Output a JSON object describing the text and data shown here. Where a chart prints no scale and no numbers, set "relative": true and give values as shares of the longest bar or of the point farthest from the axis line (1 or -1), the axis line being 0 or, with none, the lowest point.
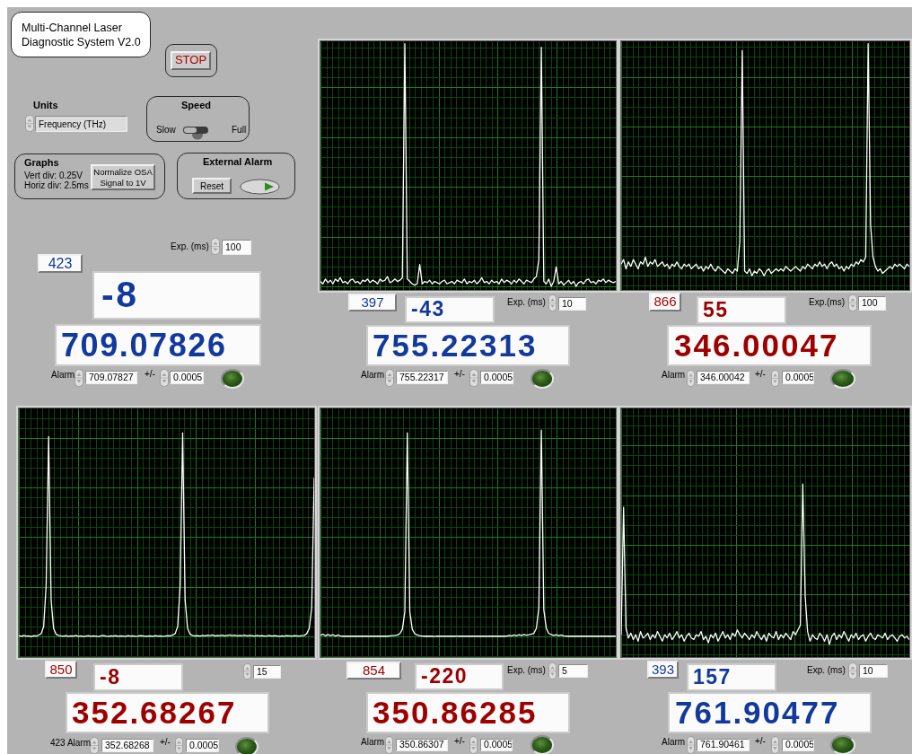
{
  "chart_data": [
    {
      "type": "other",
      "title": "Multi-Channel Laser Diagnostic System V2.0",
      "annotations": [
        "STOP",
        "Units",
        "Frequency (THz)",
        "Speed",
        "Slow",
        "Full",
        "Graphs",
        "Vert div: 0.25V",
        "Horiz div: 2.5ms",
        "Normalize OSA Signal to 1V",
        "External Alarm",
        "Reset",
        "Exp. (ms)",
        "100",
        "423",
        "-8",
        "709.07826",
        "Alarm",
        "709.07827",
        "+/-",
        "0.0005"
      ]
    },
    {
      "type": "line",
      "relative": true,
      "grid": true,
      "categories": [
        null,
        null,
        null,
        null,
        null,
        null,
        null,
        null,
        null,
        null,
        null,
        null,
        null,
        null,
        null,
        null,
        null,
        null,
        null,
        null,
        null,
        null,
        null,
        null,
        null,
        null,
        null,
        null,
        null,
        null,
        null,
        null,
        null,
        null,
        null,
        null,
        null,
        null,
        null,
        null,
        null,
        null,
        null,
        null,
        null,
        null,
        null,
        null,
        null,
        null,
        null,
        null,
        null,
        null,
        null,
        null,
        null,
        null,
        null,
        null,
        null,
        null,
        null,
        null,
        null,
        null,
        null,
        null,
        null,
        null,
        null,
        null,
        null,
        null,
        null,
        null,
        null,
        null,
        null,
        null,
        null,
        null,
        null,
        null,
        null,
        null,
        null,
        null,
        null,
        null,
        null,
        null,
        null,
        null,
        null,
        null,
        null,
        null,
        null,
        null,
        null,
        null,
        null,
        null,
        null,
        null,
        null,
        null,
        null,
        null,
        null,
        null,
        null,
        null,
        null,
        null,
        null,
        null,
        null,
        null
      ],
      "series": [
        {
          "color": "#ffffff",
          "values": [
            0.02,
            0.01,
            0.03,
            0.015,
            0.025,
            0.01,
            0.03,
            0.02,
            0.035,
            0.015,
            0.02,
            0.01,
            0.025,
            0.03,
            0.015,
            0.02,
            0.01,
            0.025,
            0.02,
            0.03,
            0.015,
            0.025,
            0.02,
            0.01,
            0.03,
            0.02,
            0.025,
            0.04,
            0.015,
            0.02,
            0.03,
            0.02,
            0.025,
            0.035,
            1,
            0.03,
            0.02,
            0.01,
            0.005,
            0.01,
            0.09,
            0.01,
            0.02,
            0.015,
            0.025,
            0.01,
            0.02,
            0.015,
            0.01,
            0.02,
            0.025,
            0.01,
            0.015,
            0.02,
            0.01,
            0.025,
            0.02,
            0.015,
            0.03,
            0.01,
            0.02,
            0.015,
            0.025,
            0.01,
            0.02,
            0.035,
            0.015,
            0.02,
            0.01,
            0.025,
            0.015,
            0.02,
            0.01,
            0.03,
            0.015,
            0.025,
            0.02,
            0.01,
            0.025,
            0.015,
            0.03,
            0.02,
            0.01,
            0.025,
            0.02,
            0.015,
            0.03,
            0.04,
            0.11,
            0.985,
            0.02,
            0.01,
            0.03,
            0,
            0.02,
            0.08,
            0.01,
            0.02,
            0.005,
            0.015,
            0.025,
            0.01,
            0.02,
            0,
            0.015,
            0.02,
            0.01,
            0.025,
            0.03,
            0.015,
            0.02,
            0.01,
            0.025,
            0.02,
            0.03,
            0.015,
            0.025,
            0.02,
            0.015,
            0.02
          ]
        }
      ],
      "annotations": [
        "397",
        "-43",
        "755.22313",
        "Exp. (ms)",
        "10",
        "Alarm",
        "755.22317",
        "+/-",
        "0.0005"
      ]
    },
    {
      "type": "line",
      "relative": true,
      "grid": true,
      "categories": [
        null,
        null,
        null,
        null,
        null,
        null,
        null,
        null,
        null,
        null,
        null,
        null,
        null,
        null,
        null,
        null,
        null,
        null,
        null,
        null,
        null,
        null,
        null,
        null,
        null,
        null,
        null,
        null,
        null,
        null,
        null,
        null,
        null,
        null,
        null,
        null,
        null,
        null,
        null,
        null,
        null,
        null,
        null,
        null,
        null,
        null,
        null,
        null,
        null,
        null,
        null,
        null,
        null,
        null,
        null,
        null,
        null,
        null,
        null,
        null,
        null,
        null,
        null,
        null,
        null,
        null,
        null,
        null,
        null,
        null,
        null,
        null,
        null,
        null,
        null,
        null,
        null,
        null,
        null,
        null,
        null,
        null,
        null,
        null,
        null,
        null,
        null,
        null,
        null,
        null,
        null,
        null,
        null,
        null,
        null,
        null,
        null,
        null,
        null,
        null,
        null,
        null,
        null,
        null,
        null,
        null,
        null,
        null,
        null,
        null,
        null,
        null,
        null,
        null,
        null,
        null,
        null,
        null,
        null,
        null
      ],
      "series": [
        {
          "color": "#ffffff",
          "values": [
            0.05,
            0.07,
            0.03,
            0.06,
            0.04,
            0.07,
            0.05,
            0.03,
            0.06,
            0.05,
            0.08,
            0.04,
            0.06,
            0.05,
            0.07,
            0.04,
            0.05,
            0.06,
            0.04,
            0.05,
            0.03,
            0.05,
            0.04,
            0.06,
            0.04,
            0.03,
            0.05,
            0.04,
            0.05,
            0.03,
            0.04,
            0.05,
            0.03,
            0.04,
            0.02,
            0.04,
            0.03,
            0.05,
            0.03,
            0.02,
            0.04,
            0.03,
            0.02,
            0.01,
            0.03,
            0.02,
            0.01,
            0.03,
            0.02,
            0.15,
            0.97,
            0.02,
            0.01,
            0.03,
            0,
            0.02,
            0.01,
            0.03,
            0.02,
            0,
            0.02,
            0.03,
            0.01,
            0.02,
            0.03,
            0.02,
            0.03,
            0.02,
            0.04,
            0.03,
            0.02,
            0.03,
            0.04,
            0.03,
            0.02,
            0.04,
            0.03,
            0.05,
            0.04,
            0.03,
            0.05,
            0.04,
            0.06,
            0.04,
            0.05,
            0.03,
            0.05,
            0.06,
            0.04,
            0.05,
            0.03,
            0.04,
            0.02,
            0.04,
            0.03,
            0.05,
            0.04,
            0.06,
            0.05,
            0.07,
            0.06,
            0.08,
            1,
            0.22,
            0.08,
            0.04,
            0.02,
            0.03,
            0.01,
            0.02,
            0.03,
            0.04,
            0.03,
            0.05,
            0.04,
            0.05,
            0.04,
            0.03,
            0.05,
            0.04
          ]
        }
      ],
      "annotations": [
        "866",
        "55",
        "346.00047",
        "Exp.(ms)",
        "100",
        "Alarm",
        "346.00042",
        "+/-",
        "0.0005"
      ]
    },
    {
      "type": "line",
      "relative": true,
      "grid": true,
      "categories": [
        null,
        null,
        null,
        null,
        null,
        null,
        null,
        null,
        null,
        null,
        null,
        null,
        null,
        null,
        null,
        null,
        null,
        null,
        null,
        null,
        null,
        null,
        null,
        null,
        null,
        null,
        null,
        null,
        null,
        null,
        null,
        null,
        null,
        null,
        null,
        null,
        null,
        null,
        null,
        null,
        null,
        null,
        null,
        null,
        null,
        null,
        null,
        null,
        null,
        null,
        null,
        null,
        null,
        null,
        null,
        null,
        null,
        null,
        null,
        null,
        null,
        null,
        null,
        null,
        null,
        null,
        null,
        null,
        null,
        null,
        null,
        null,
        null,
        null,
        null,
        null,
        null,
        null,
        null,
        null,
        null,
        null,
        null,
        null,
        null,
        null,
        null,
        null,
        null,
        null,
        null,
        null,
        null,
        null,
        null,
        null,
        null,
        null,
        null,
        null,
        null,
        null,
        null,
        null,
        null,
        null,
        null,
        null,
        null,
        null,
        null,
        null,
        null,
        null,
        null,
        null,
        null,
        null,
        null,
        null
      ],
      "series": [
        {
          "color": "#ffffff",
          "values": [
            0.005,
            0.002,
            0.006,
            0.003,
            0.004,
            0,
            0.005,
            0.003,
            0.008,
            0.015,
            0.05,
            0.25,
            0.982,
            0.18,
            0.04,
            0.012,
            0.006,
            0.004,
            0.003,
            0.005,
            0.002,
            0.004,
            0.003,
            0.006,
            0.002,
            0.004,
            0.001,
            0.003,
            0.005,
            0.002,
            0.004,
            0.003,
            0.001,
            0.004,
            0.006,
            0.003,
            0.002,
            0.004,
            0.003,
            0.005,
            0.002,
            0.004,
            0.003,
            0.002,
            0.005,
            0.003,
            0.004,
            0.002,
            0.003,
            0.005,
            0.004,
            0.002,
            0.003,
            0.004,
            0.002,
            0.005,
            0.003,
            0.004,
            0.002,
            0.003,
            0.005,
            0.004,
            0.008,
            0.015,
            0.05,
            0.25,
            1,
            0.18,
            0.04,
            0.012,
            0.006,
            0.004,
            0.005,
            0.003,
            0.006,
            0.004,
            0.007,
            0.005,
            0.008,
            0.004,
            0.006,
            0.005,
            0.007,
            0.004,
            0.006,
            0.008,
            0.005,
            0.007,
            0.004,
            0.006,
            0.005,
            0.007,
            0.004,
            0.006,
            0.005,
            0.003,
            0.006,
            0.004,
            0.005,
            0.003,
            0.004,
            0.006,
            0.003,
            0.005,
            0.004,
            0.002,
            0.004,
            0.003,
            0.005,
            0.004,
            0.003,
            0.005,
            0.004,
            0.003,
            0.005,
            0.006,
            0.015,
            0.04,
            0.14,
            0.78
          ]
        }
      ],
      "annotations": [
        "850",
        "-8",
        "352.68267",
        "15",
        "423 Alarm",
        "352.68268",
        "+/-",
        "0.0005"
      ]
    },
    {
      "type": "line",
      "relative": true,
      "grid": true,
      "categories": [
        null,
        null,
        null,
        null,
        null,
        null,
        null,
        null,
        null,
        null,
        null,
        null,
        null,
        null,
        null,
        null,
        null,
        null,
        null,
        null,
        null,
        null,
        null,
        null,
        null,
        null,
        null,
        null,
        null,
        null,
        null,
        null,
        null,
        null,
        null,
        null,
        null,
        null,
        null,
        null,
        null,
        null,
        null,
        null,
        null,
        null,
        null,
        null,
        null,
        null,
        null,
        null,
        null,
        null,
        null,
        null,
        null,
        null,
        null,
        null,
        null,
        null,
        null,
        null,
        null,
        null,
        null,
        null,
        null,
        null,
        null,
        null,
        null,
        null,
        null,
        null,
        null,
        null,
        null,
        null,
        null,
        null,
        null,
        null,
        null,
        null,
        null,
        null,
        null,
        null,
        null,
        null,
        null,
        null,
        null,
        null,
        null,
        null,
        null,
        null,
        null,
        null,
        null,
        null,
        null,
        null,
        null,
        null,
        null,
        null,
        null,
        null,
        null,
        null,
        null,
        null,
        null,
        null,
        null,
        null
      ],
      "series": [
        {
          "color": "#ffffff",
          "values": [
            0.006,
            0.012,
            0.004,
            0.01,
            0.005,
            0.009,
            0.003,
            0.008,
            0.004,
            0.002,
            0.003,
            0.002,
            0.003,
            0.002,
            0.003,
            0.002,
            0.003,
            0.002,
            0.003,
            0.002,
            0.003,
            0.002,
            0.003,
            0.002,
            0.003,
            0.002,
            0.003,
            0.002,
            0.004,
            0.005,
            0.006,
            0.008,
            0.014,
            0.035,
            0.12,
            0.987,
            0.12,
            0.035,
            0.014,
            0.008,
            0.005,
            0.003,
            0.002,
            0.003,
            0.002,
            0.003,
            0,
            0.003,
            0.002,
            0.003,
            0.002,
            0.003,
            0.002,
            0.003,
            0.002,
            0.003,
            0.002,
            0.003,
            0.002,
            0.003,
            0.002,
            0.003,
            0.002,
            0.003,
            0.002,
            0.003,
            0.002,
            0.003,
            0.002,
            0.003,
            0.002,
            0.003,
            0.002,
            0.003,
            0.002,
            0.003,
            0.006,
            0.004,
            0.008,
            0.005,
            0.009,
            0.006,
            0.01,
            0.007,
            0.009,
            0.012,
            0.016,
            0.04,
            0.14,
            1,
            0.13,
            0.04,
            0.015,
            0.01,
            0.006,
            0.009,
            0.005,
            0.008,
            0.004,
            0.003,
            0.002,
            0.003,
            0.002,
            0.003,
            0.002,
            0.003,
            0.002,
            0.003,
            0.002,
            0.003,
            0.002,
            0.003,
            0.002,
            0.003,
            0.002,
            0.003,
            0.002,
            0.003,
            0.002,
            0.003
          ]
        }
      ],
      "annotations": [
        "854",
        "-220",
        "350.86285",
        "Exp. (ms)",
        "5",
        "Alarm",
        "350.86307",
        "+/-",
        "0.0005"
      ]
    },
    {
      "type": "line",
      "relative": true,
      "grid": true,
      "categories": [
        null,
        null,
        null,
        null,
        null,
        null,
        null,
        null,
        null,
        null,
        null,
        null,
        null,
        null,
        null,
        null,
        null,
        null,
        null,
        null,
        null,
        null,
        null,
        null,
        null,
        null,
        null,
        null,
        null,
        null,
        null,
        null,
        null,
        null,
        null,
        null,
        null,
        null,
        null,
        null,
        null,
        null,
        null,
        null,
        null,
        null,
        null,
        null,
        null,
        null,
        null,
        null,
        null,
        null,
        null,
        null,
        null,
        null,
        null,
        null,
        null,
        null,
        null,
        null,
        null,
        null,
        null,
        null,
        null,
        null,
        null,
        null,
        null,
        null,
        null,
        null,
        null,
        null,
        null,
        null,
        null,
        null,
        null,
        null,
        null,
        null,
        null,
        null,
        null,
        null,
        null,
        null,
        null,
        null,
        null,
        null,
        null,
        null,
        null,
        null,
        null,
        null,
        null,
        null,
        null,
        null,
        null,
        null,
        null,
        null,
        null,
        null,
        null,
        null,
        null,
        null,
        null,
        null,
        null,
        null
      ],
      "series": [
        {
          "color": "#ffffff",
          "values": [
            0.06,
            0.854,
            0.1,
            0.04,
            0.07,
            0.03,
            0.06,
            0.02,
            0.08,
            0.04,
            0.05,
            0.07,
            0.03,
            0.06,
            0.04,
            0.08,
            0.05,
            0.02,
            0.06,
            0.04,
            0.07,
            0.03,
            0.05,
            0.08,
            0.04,
            0.06,
            0.02,
            0.05,
            0.07,
            0.04,
            0.03,
            0.06,
            0.05,
            0.08,
            0.03,
            0.05,
            0.01,
            0.06,
            0.04,
            0.07,
            0.02,
            0.05,
            0.08,
            0.04,
            0.06,
            0.03,
            0.07,
            0.05,
            0.09,
            0.06,
            0.04,
            0.07,
            0.05,
            0.03,
            0.06,
            0.04,
            0.08,
            0.05,
            0.03,
            0.06,
            0.02,
            0.07,
            0.05,
            0.04,
            0.08,
            0.03,
            0.06,
            0.04,
            0.07,
            0.05,
            0.03,
            0.08,
            0.06,
            0.09,
            0.12,
            1,
            0.3,
            0.08,
            0.02,
            0.06,
            0.04,
            0.03,
            0.07,
            0.05,
            0.02,
            0.06,
            0,
            0.05,
            0.07,
            0.03,
            0.06,
            0.04,
            0.08,
            0.05,
            0.02,
            0.06,
            0.04,
            0.07,
            0.03,
            0.05,
            0.06,
            0.02,
            0.05,
            0.07,
            0.04,
            0.03,
            0.06,
            0.05,
            0.04,
            0.07,
            0.03,
            0.05,
            0.06,
            0.04,
            0.02,
            0.05,
            0.06,
            0.04,
            0.05,
            0.03
          ]
        }
      ],
      "annotations": [
        "393",
        "157",
        "761.90477",
        "Exp. (ms)",
        "10",
        "Alarm",
        "761.90461",
        "+/-",
        "0.0005"
      ]
    }
  ]
}
